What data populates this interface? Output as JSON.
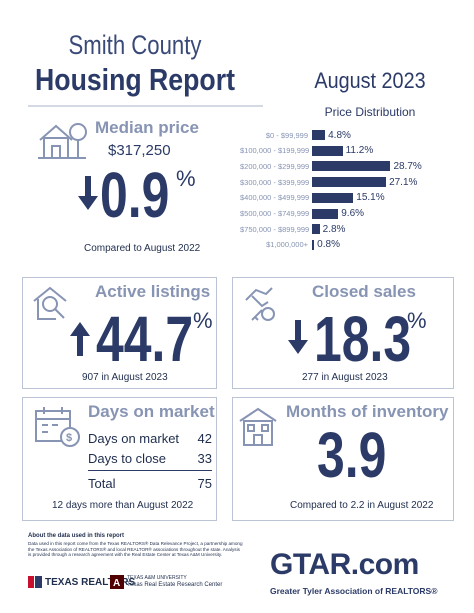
{
  "header": {
    "title_line1": "Smith County",
    "title_line2": "Housing Report",
    "month": "August 2023"
  },
  "median": {
    "title": "Median price",
    "price": "$317,250",
    "direction": "down",
    "change": "0.9",
    "unit": "%",
    "note": "Compared to August 2022"
  },
  "chart_data": {
    "type": "bar",
    "orientation": "horizontal",
    "title": "Price Distribution",
    "categories": [
      "$0 - $99,999",
      "$100,000 - $199,999",
      "$200,000 - $299,999",
      "$300,000 - $399,999",
      "$400,000 - $499,999",
      "$500,000 - $749,999",
      "$750,000 - $899,999",
      "$1,000,000+"
    ],
    "values": [
      4.8,
      11.2,
      28.7,
      27.1,
      15.1,
      9.6,
      2.8,
      0.8
    ],
    "value_labels": [
      "4.8%",
      "11.2%",
      "28.7%",
      "27.1%",
      "15.1%",
      "9.6%",
      "2.8%",
      "0.8%"
    ],
    "xlim": [
      0,
      30
    ],
    "color": "#2b3a67"
  },
  "active": {
    "title": "Active listings",
    "direction": "up",
    "change": "44.7",
    "unit": "%",
    "note": "907 in August 2023"
  },
  "closed": {
    "title": "Closed sales",
    "direction": "down",
    "change": "18.3",
    "unit": "%",
    "note": "277 in August 2023"
  },
  "dom": {
    "title": "Days on market",
    "rows": [
      {
        "label": "Days on market",
        "value": "42"
      },
      {
        "label": "Days to close",
        "value": "33"
      }
    ],
    "total_label": "Total",
    "total_value": "75",
    "note": "12 days more than August 2022"
  },
  "inventory": {
    "title": "Months of inventory",
    "value": "3.9",
    "note": "Compared to 2.2 in August 2022"
  },
  "footer": {
    "head": "About the data used in this report",
    "text": "Data used in this report come from the Texas REALTORS® Data Relevance Project, a partnership among the Texas Association of REALTORS® and local REALTOR® associations throughout the state. Analysis is provided through a research agreement with the Real Estate Center at Texas A&M University.",
    "tr_logo": "TEXAS REALTORS",
    "tamu_line1": "TEXAS A&M UNIVERSITY",
    "tamu_line2": "Texas Real Estate Research Center",
    "gtar": "GTAR.com",
    "gtar_sub": "Greater Tyler Association of REALTORS®"
  },
  "colors": {
    "navy": "#2b3a67",
    "slate": "#8794b3",
    "border": "#bcc3d4",
    "brand_red": "#c8102e"
  }
}
